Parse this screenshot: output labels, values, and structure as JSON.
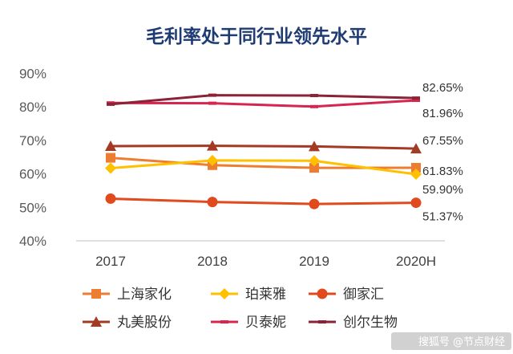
{
  "chart_data": {
    "type": "line",
    "title": "毛利率处于同行业领先水平",
    "xlabel": "",
    "ylabel": "",
    "categories": [
      "2017",
      "2018",
      "2019",
      "2020H"
    ],
    "yticks": [
      "40%",
      "50%",
      "60%",
      "70%",
      "80%",
      "90%"
    ],
    "ylim": [
      40,
      92
    ],
    "grid": false,
    "legend_position": "bottom",
    "series": [
      {
        "name": "上海家化",
        "values": [
          64.8,
          62.6,
          61.8,
          61.83
        ],
        "color": "#ed7d31",
        "marker": "square"
      },
      {
        "name": "珀莱雅",
        "values": [
          61.7,
          64.0,
          63.9,
          59.9
        ],
        "color": "#ffc000",
        "marker": "diamond"
      },
      {
        "name": "御家汇",
        "values": [
          52.6,
          51.6,
          51.0,
          51.37
        ],
        "color": "#e04a1d",
        "marker": "circle"
      },
      {
        "name": "丸美股份",
        "values": [
          68.3,
          68.4,
          68.2,
          67.55
        ],
        "color": "#a33a24",
        "marker": "triangle"
      },
      {
        "name": "贝泰妮",
        "values": [
          81.2,
          81.1,
          80.1,
          81.96
        ],
        "color": "#d6264f",
        "marker": "dash"
      },
      {
        "name": "创尔生物",
        "values": [
          80.8,
          83.5,
          83.4,
          82.65
        ],
        "color": "#8b2236",
        "marker": "dash"
      }
    ],
    "data_labels": [
      {
        "series": "创尔生物",
        "text": "82.65%"
      },
      {
        "series": "贝泰妮",
        "text": "81.96%"
      },
      {
        "series": "丸美股份",
        "text": "67.55%"
      },
      {
        "series": "上海家化",
        "text": "61.83%"
      },
      {
        "series": "珀莱雅",
        "text": "59.90%"
      },
      {
        "series": "御家汇",
        "text": "51.37%"
      }
    ]
  },
  "watermark": "搜狐号 @节点财经"
}
